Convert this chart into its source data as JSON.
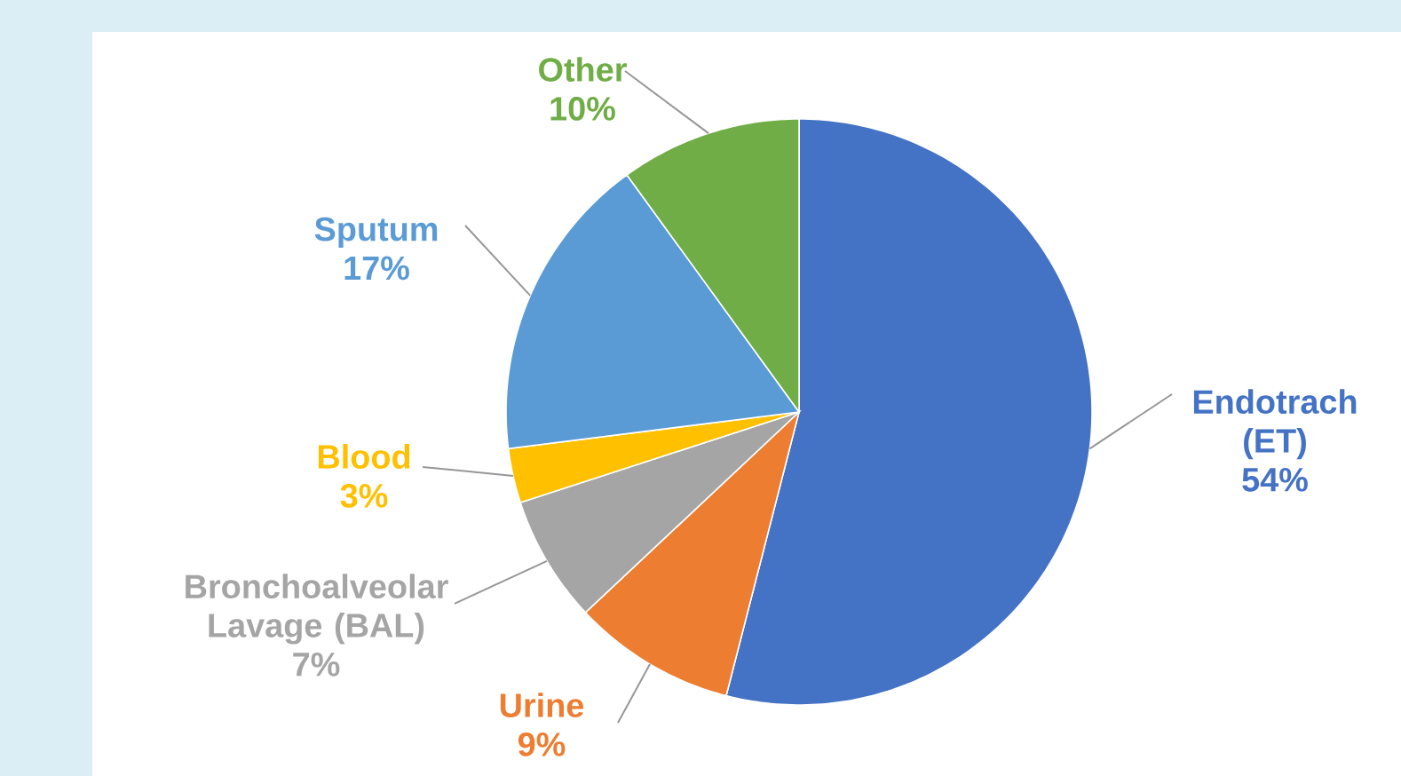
{
  "chart_data": {
    "type": "pie",
    "categories": [
      "Endotrach (ET)",
      "Urine",
      "Bronchoalveolar Lavage (BAL)",
      "Blood",
      "Sputum",
      "Other"
    ],
    "values": [
      54,
      9,
      7,
      3,
      17,
      10
    ],
    "colors": [
      "#4472c4",
      "#ed7d31",
      "#a5a5a5",
      "#ffc000",
      "#5b9bd5",
      "#70ad47"
    ],
    "value_labels": [
      "54%",
      "9%",
      "7%",
      "3%",
      "17%",
      "10%"
    ]
  }
}
